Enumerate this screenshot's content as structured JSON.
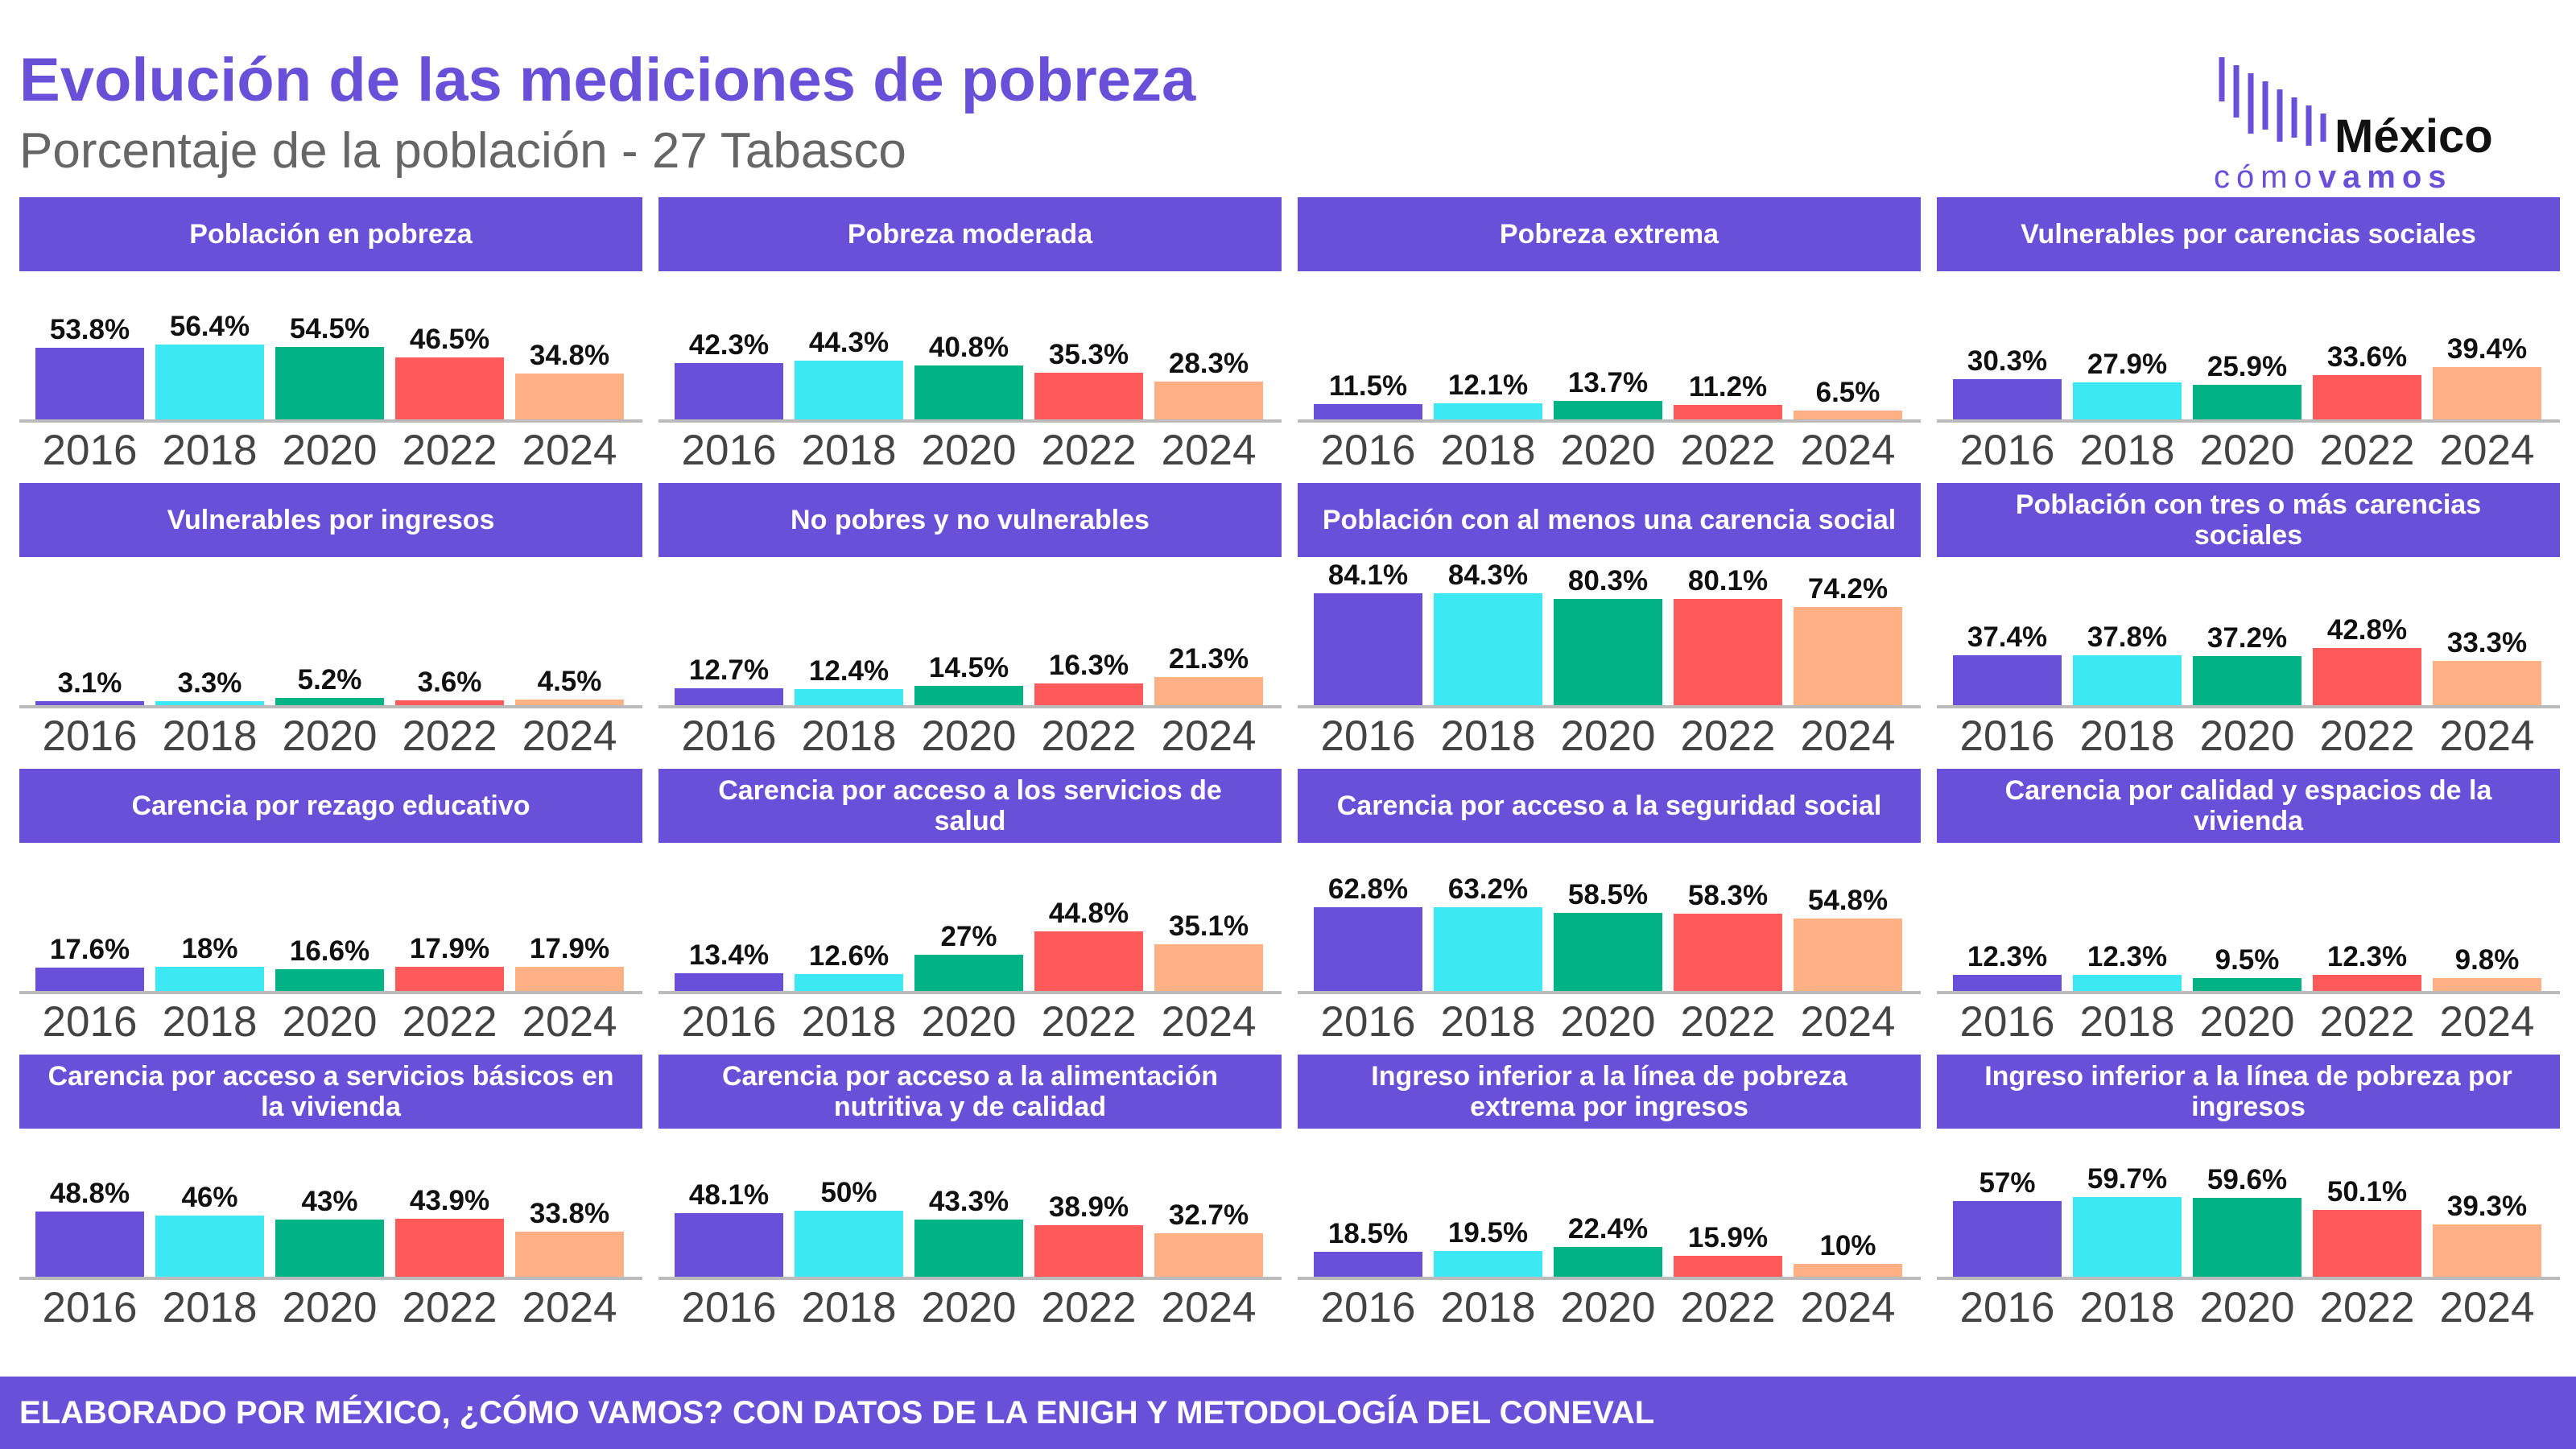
{
  "title": "Evolución de las mediciones de pobreza",
  "subtitle": "Porcentaje de la población - 27 Tabasco",
  "logo": {
    "name": "México",
    "tagline_1": "cómo",
    "tagline_2": "vamos"
  },
  "footer": "ELABORADO POR MÉXICO, ¿CÓMO VAMOS? CON DATOS DE LA ENIGH Y METODOLOGÍA DEL CONEVAL",
  "chart_data": [
    {
      "type": "bar",
      "title": "Población en pobreza",
      "categories": [
        "2016",
        "2018",
        "2020",
        "2022",
        "2024"
      ],
      "values": [
        53.8,
        56.4,
        54.5,
        46.5,
        34.8
      ],
      "value_labels": [
        "53.8%",
        "56.4%",
        "54.5%",
        "46.5%",
        "34.8%"
      ],
      "colors": [
        "#6a4fd8",
        "#3de8f5",
        "#00b386",
        "#ff5a5a",
        "#ffb085"
      ],
      "ylim": [
        0,
        100
      ]
    },
    {
      "type": "bar",
      "title": "Pobreza moderada",
      "categories": [
        "2016",
        "2018",
        "2020",
        "2022",
        "2024"
      ],
      "values": [
        42.3,
        44.3,
        40.8,
        35.3,
        28.3
      ],
      "value_labels": [
        "42.3%",
        "44.3%",
        "40.8%",
        "35.3%",
        "28.3%"
      ],
      "colors": [
        "#6a4fd8",
        "#3de8f5",
        "#00b386",
        "#ff5a5a",
        "#ffb085"
      ],
      "ylim": [
        0,
        100
      ]
    },
    {
      "type": "bar",
      "title": "Pobreza extrema",
      "categories": [
        "2016",
        "2018",
        "2020",
        "2022",
        "2024"
      ],
      "values": [
        11.5,
        12.1,
        13.7,
        11.2,
        6.5
      ],
      "value_labels": [
        "11.5%",
        "12.1%",
        "13.7%",
        "11.2%",
        "6.5%"
      ],
      "colors": [
        "#6a4fd8",
        "#3de8f5",
        "#00b386",
        "#ff5a5a",
        "#ffb085"
      ],
      "ylim": [
        0,
        100
      ]
    },
    {
      "type": "bar",
      "title": "Vulnerables por carencias sociales",
      "categories": [
        "2016",
        "2018",
        "2020",
        "2022",
        "2024"
      ],
      "values": [
        30.3,
        27.9,
        25.9,
        33.6,
        39.4
      ],
      "value_labels": [
        "30.3%",
        "27.9%",
        "25.9%",
        "33.6%",
        "39.4%"
      ],
      "colors": [
        "#6a4fd8",
        "#3de8f5",
        "#00b386",
        "#ff5a5a",
        "#ffb085"
      ],
      "ylim": [
        0,
        100
      ]
    },
    {
      "type": "bar",
      "title": "Vulnerables por ingresos",
      "categories": [
        "2016",
        "2018",
        "2020",
        "2022",
        "2024"
      ],
      "values": [
        3.1,
        3.3,
        5.2,
        3.6,
        4.5
      ],
      "value_labels": [
        "3.1%",
        "3.3%",
        "5.2%",
        "3.6%",
        "4.5%"
      ],
      "colors": [
        "#6a4fd8",
        "#3de8f5",
        "#00b386",
        "#ff5a5a",
        "#ffb085"
      ],
      "ylim": [
        0,
        100
      ]
    },
    {
      "type": "bar",
      "title": "No pobres y no vulnerables",
      "categories": [
        "2016",
        "2018",
        "2020",
        "2022",
        "2024"
      ],
      "values": [
        12.7,
        12.4,
        14.5,
        16.3,
        21.3
      ],
      "value_labels": [
        "12.7%",
        "12.4%",
        "14.5%",
        "16.3%",
        "21.3%"
      ],
      "colors": [
        "#6a4fd8",
        "#3de8f5",
        "#00b386",
        "#ff5a5a",
        "#ffb085"
      ],
      "ylim": [
        0,
        100
      ]
    },
    {
      "type": "bar",
      "title": "Población con al menos una carencia social",
      "categories": [
        "2016",
        "2018",
        "2020",
        "2022",
        "2024"
      ],
      "values": [
        84.1,
        84.3,
        80.3,
        80.1,
        74.2
      ],
      "value_labels": [
        "84.1%",
        "84.3%",
        "80.3%",
        "80.1%",
        "74.2%"
      ],
      "colors": [
        "#6a4fd8",
        "#3de8f5",
        "#00b386",
        "#ff5a5a",
        "#ffb085"
      ],
      "ylim": [
        0,
        100
      ]
    },
    {
      "type": "bar",
      "title": "Población con tres o más carencias sociales",
      "categories": [
        "2016",
        "2018",
        "2020",
        "2022",
        "2024"
      ],
      "values": [
        37.4,
        37.8,
        37.2,
        42.8,
        33.3
      ],
      "value_labels": [
        "37.4%",
        "37.8%",
        "37.2%",
        "42.8%",
        "33.3%"
      ],
      "colors": [
        "#6a4fd8",
        "#3de8f5",
        "#00b386",
        "#ff5a5a",
        "#ffb085"
      ],
      "ylim": [
        0,
        100
      ]
    },
    {
      "type": "bar",
      "title": "Carencia por rezago educativo",
      "categories": [
        "2016",
        "2018",
        "2020",
        "2022",
        "2024"
      ],
      "values": [
        17.6,
        18,
        16.6,
        17.9,
        17.9
      ],
      "value_labels": [
        "17.6%",
        "18%",
        "16.6%",
        "17.9%",
        "17.9%"
      ],
      "colors": [
        "#6a4fd8",
        "#3de8f5",
        "#00b386",
        "#ff5a5a",
        "#ffb085"
      ],
      "ylim": [
        0,
        100
      ]
    },
    {
      "type": "bar",
      "title": "Carencia por acceso a los servicios de salud",
      "categories": [
        "2016",
        "2018",
        "2020",
        "2022",
        "2024"
      ],
      "values": [
        13.4,
        12.6,
        27,
        44.8,
        35.1
      ],
      "value_labels": [
        "13.4%",
        "12.6%",
        "27%",
        "44.8%",
        "35.1%"
      ],
      "colors": [
        "#6a4fd8",
        "#3de8f5",
        "#00b386",
        "#ff5a5a",
        "#ffb085"
      ],
      "ylim": [
        0,
        100
      ]
    },
    {
      "type": "bar",
      "title": "Carencia por acceso a la seguridad social",
      "categories": [
        "2016",
        "2018",
        "2020",
        "2022",
        "2024"
      ],
      "values": [
        62.8,
        63.2,
        58.5,
        58.3,
        54.8
      ],
      "value_labels": [
        "62.8%",
        "63.2%",
        "58.5%",
        "58.3%",
        "54.8%"
      ],
      "colors": [
        "#6a4fd8",
        "#3de8f5",
        "#00b386",
        "#ff5a5a",
        "#ffb085"
      ],
      "ylim": [
        0,
        100
      ]
    },
    {
      "type": "bar",
      "title": "Carencia por calidad y espacios de la vivienda",
      "categories": [
        "2016",
        "2018",
        "2020",
        "2022",
        "2024"
      ],
      "values": [
        12.3,
        12.3,
        9.5,
        12.3,
        9.8
      ],
      "value_labels": [
        "12.3%",
        "12.3%",
        "9.5%",
        "12.3%",
        "9.8%"
      ],
      "colors": [
        "#6a4fd8",
        "#3de8f5",
        "#00b386",
        "#ff5a5a",
        "#ffb085"
      ],
      "ylim": [
        0,
        100
      ]
    },
    {
      "type": "bar",
      "title": "Carencia por acceso a servicios básicos en la vivienda",
      "categories": [
        "2016",
        "2018",
        "2020",
        "2022",
        "2024"
      ],
      "values": [
        48.8,
        46,
        43,
        43.9,
        33.8
      ],
      "value_labels": [
        "48.8%",
        "46%",
        "43%",
        "43.9%",
        "33.8%"
      ],
      "colors": [
        "#6a4fd8",
        "#3de8f5",
        "#00b386",
        "#ff5a5a",
        "#ffb085"
      ],
      "ylim": [
        0,
        100
      ]
    },
    {
      "type": "bar",
      "title": "Carencia por acceso a la alimentación nutritiva y de calidad",
      "categories": [
        "2016",
        "2018",
        "2020",
        "2022",
        "2024"
      ],
      "values": [
        48.1,
        50,
        43.3,
        38.9,
        32.7
      ],
      "value_labels": [
        "48.1%",
        "50%",
        "43.3%",
        "38.9%",
        "32.7%"
      ],
      "colors": [
        "#6a4fd8",
        "#3de8f5",
        "#00b386",
        "#ff5a5a",
        "#ffb085"
      ],
      "ylim": [
        0,
        100
      ]
    },
    {
      "type": "bar",
      "title": "Ingreso inferior a la línea de pobreza extrema por ingresos",
      "categories": [
        "2016",
        "2018",
        "2020",
        "2022",
        "2024"
      ],
      "values": [
        18.5,
        19.5,
        22.4,
        15.9,
        10
      ],
      "value_labels": [
        "18.5%",
        "19.5%",
        "22.4%",
        "15.9%",
        "10%"
      ],
      "colors": [
        "#6a4fd8",
        "#3de8f5",
        "#00b386",
        "#ff5a5a",
        "#ffb085"
      ],
      "ylim": [
        0,
        100
      ]
    },
    {
      "type": "bar",
      "title": "Ingreso inferior a la línea de pobreza por ingresos",
      "categories": [
        "2016",
        "2018",
        "2020",
        "2022",
        "2024"
      ],
      "values": [
        57,
        59.7,
        59.6,
        50.1,
        39.3
      ],
      "value_labels": [
        "57%",
        "59.7%",
        "59.6%",
        "50.1%",
        "39.3%"
      ],
      "colors": [
        "#6a4fd8",
        "#3de8f5",
        "#00b386",
        "#ff5a5a",
        "#ffb085"
      ],
      "ylim": [
        0,
        100
      ]
    }
  ]
}
